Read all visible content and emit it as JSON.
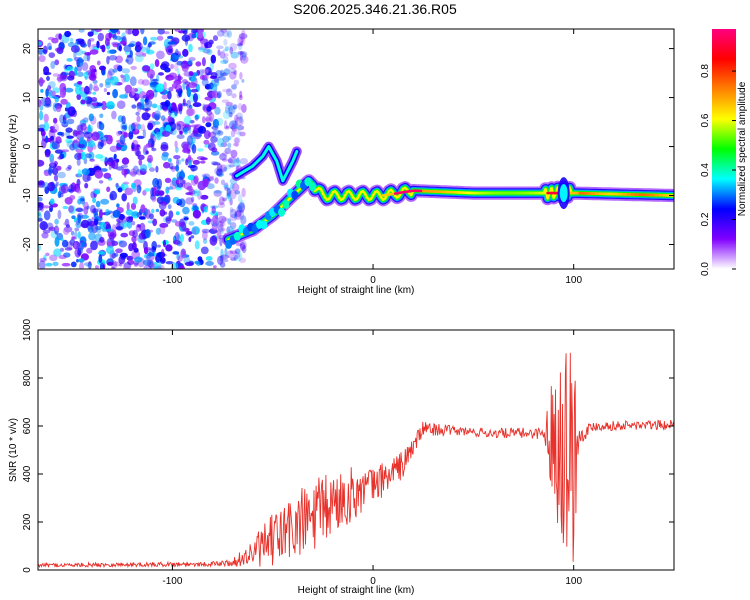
{
  "title": "S206.2025.346.21.36.R05",
  "chart_data": [
    {
      "type": "heatmap",
      "title": "S206.2025.346.21.36.R05",
      "xlabel": "Height of straight line (km)",
      "ylabel": "Frequency (Hz)",
      "xlim": [
        -167,
        150
      ],
      "ylim": [
        -25,
        24
      ],
      "x_ticks": [
        -100,
        0,
        100
      ],
      "y_ticks": [
        -20,
        -10,
        0,
        10,
        20
      ],
      "colorbar": {
        "label": "Normalized spectral amplitude",
        "range": [
          0,
          0.97
        ],
        "ticks": [
          0.0,
          0.2,
          0.4,
          0.6,
          0.8
        ],
        "tick_labels": [
          "0.0",
          "0.2",
          "0.4",
          "0.6",
          "0.8"
        ],
        "colors": [
          "#ffffff",
          "#8000ff",
          "#0000ff",
          "#00ffff",
          "#00ff00",
          "#ffff00",
          "#ff8000",
          "#ff0000",
          "#ff0080"
        ]
      },
      "features": {
        "noise_region_x": [
          -167,
          -70
        ],
        "noise_amplitude": 0.15,
        "signal_band_path": [
          {
            "x": -72,
            "y": -19
          },
          {
            "x": -60,
            "y": -17
          },
          {
            "x": -50,
            "y": -14
          },
          {
            "x": -40,
            "y": -10
          },
          {
            "x": -32,
            "y": -7
          },
          {
            "x": -25,
            "y": -10
          },
          {
            "x": -15,
            "y": -10
          },
          {
            "x": -5,
            "y": -10
          },
          {
            "x": 5,
            "y": -10
          },
          {
            "x": 20,
            "y": -9
          },
          {
            "x": 50,
            "y": -9.5
          },
          {
            "x": 85,
            "y": -9.5
          },
          {
            "x": 100,
            "y": -9.5
          },
          {
            "x": 150,
            "y": -10
          }
        ],
        "hook_path": [
          {
            "x": -68,
            "y": -6
          },
          {
            "x": -60,
            "y": -4
          },
          {
            "x": -55,
            "y": -2
          },
          {
            "x": -52,
            "y": 0
          },
          {
            "x": -48,
            "y": -3
          },
          {
            "x": -45,
            "y": -7
          },
          {
            "x": -40,
            "y": -3
          },
          {
            "x": -38,
            "y": -1
          }
        ],
        "band_peak_amplitude": 0.9
      }
    },
    {
      "type": "line",
      "xlabel": "Height of straight line (km)",
      "ylabel": "SNR (10 * v/v)",
      "xlim": [
        -167,
        150
      ],
      "ylim": [
        0,
        1000
      ],
      "x_ticks": [
        -100,
        0,
        100
      ],
      "y_ticks": [
        0,
        200,
        400,
        600,
        800,
        1000
      ],
      "color": "#e8312a",
      "series": [
        {
          "name": "SNR",
          "envelope": [
            {
              "x": -167,
              "base": 20,
              "amp": 8
            },
            {
              "x": -80,
              "base": 25,
              "amp": 10
            },
            {
              "x": -70,
              "base": 30,
              "amp": 15
            },
            {
              "x": -60,
              "base": 70,
              "amp": 60
            },
            {
              "x": -45,
              "base": 150,
              "amp": 140
            },
            {
              "x": -30,
              "base": 220,
              "amp": 160
            },
            {
              "x": -15,
              "base": 300,
              "amp": 130
            },
            {
              "x": 0,
              "base": 350,
              "amp": 80
            },
            {
              "x": 15,
              "base": 440,
              "amp": 60
            },
            {
              "x": 25,
              "base": 590,
              "amp": 30
            },
            {
              "x": 40,
              "base": 580,
              "amp": 20
            },
            {
              "x": 60,
              "base": 570,
              "amp": 20
            },
            {
              "x": 85,
              "base": 570,
              "amp": 25
            },
            {
              "x": 93,
              "base": 560,
              "amp": 420
            },
            {
              "x": 100,
              "base": 500,
              "amp": 500
            },
            {
              "x": 103,
              "base": 560,
              "amp": 40
            },
            {
              "x": 110,
              "base": 600,
              "amp": 20
            },
            {
              "x": 150,
              "base": 605,
              "amp": 20
            }
          ]
        }
      ]
    }
  ]
}
